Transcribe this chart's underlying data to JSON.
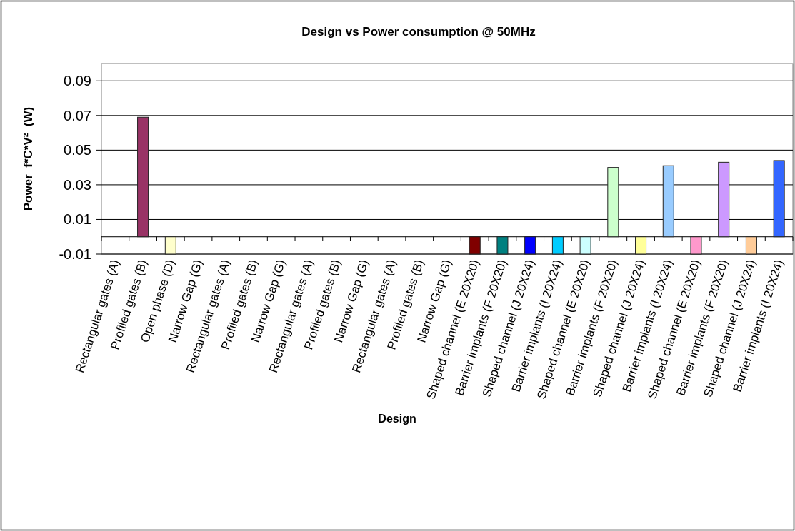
{
  "chart_data": {
    "type": "bar",
    "title": "Design vs Power consumption @ 50MHz",
    "xlabel": "Design",
    "ylabel": "Power  f*C*V²  (W)",
    "categories": [
      "Rectangular gates (A)",
      "Profiled gates (B)",
      "Open phase (D)",
      "Narrow Gap (G)",
      "Rectangular gates (A)",
      "Profiled gates (B)",
      "Narrow Gap (G)",
      "Rectangular gates (A)",
      "Profiled gates (B)",
      "Narrow Gap (G)",
      "Rectangular gates (A)",
      "Profiled gates (B)",
      "Narrow Gap (G)",
      "Shaped channel (E 20X20)",
      "Barrier implants (F 20X20)",
      "Shaped channel (J 20X24)",
      "Barrier implants (I 20X24)",
      "Shaped channel (E 20X20)",
      "Barrier implants (F 20X20)",
      "Shaped channel (J 20X24)",
      "Barrier implants (I 20X24)",
      "Shaped channel (E 20X20)",
      "Barrier implants (F 20X20)",
      "Shaped channel (J 20X24)",
      "Barrier implants (I 20X24)"
    ],
    "values": [
      null,
      0.069,
      -0.01,
      null,
      null,
      null,
      null,
      null,
      null,
      null,
      null,
      null,
      null,
      -0.01,
      -0.01,
      -0.01,
      -0.01,
      -0.01,
      0.04,
      -0.01,
      0.041,
      -0.01,
      0.043,
      -0.01,
      0.044
    ],
    "colors": [
      null,
      "#993366",
      "#ffffcc",
      null,
      null,
      null,
      null,
      null,
      null,
      null,
      null,
      null,
      null,
      "#800000",
      "#008080",
      "#0000ff",
      "#00ccff",
      "#ccffff",
      "#ccffcc",
      "#ffff99",
      "#99ccff",
      "#ff99cc",
      "#cc99ff",
      "#ffcc99",
      "#3366ff"
    ],
    "ylim": [
      -0.01,
      0.1
    ],
    "yticks": [
      -0.01,
      0.01,
      0.03,
      0.05,
      0.07,
      0.09
    ],
    "grid": "y"
  }
}
